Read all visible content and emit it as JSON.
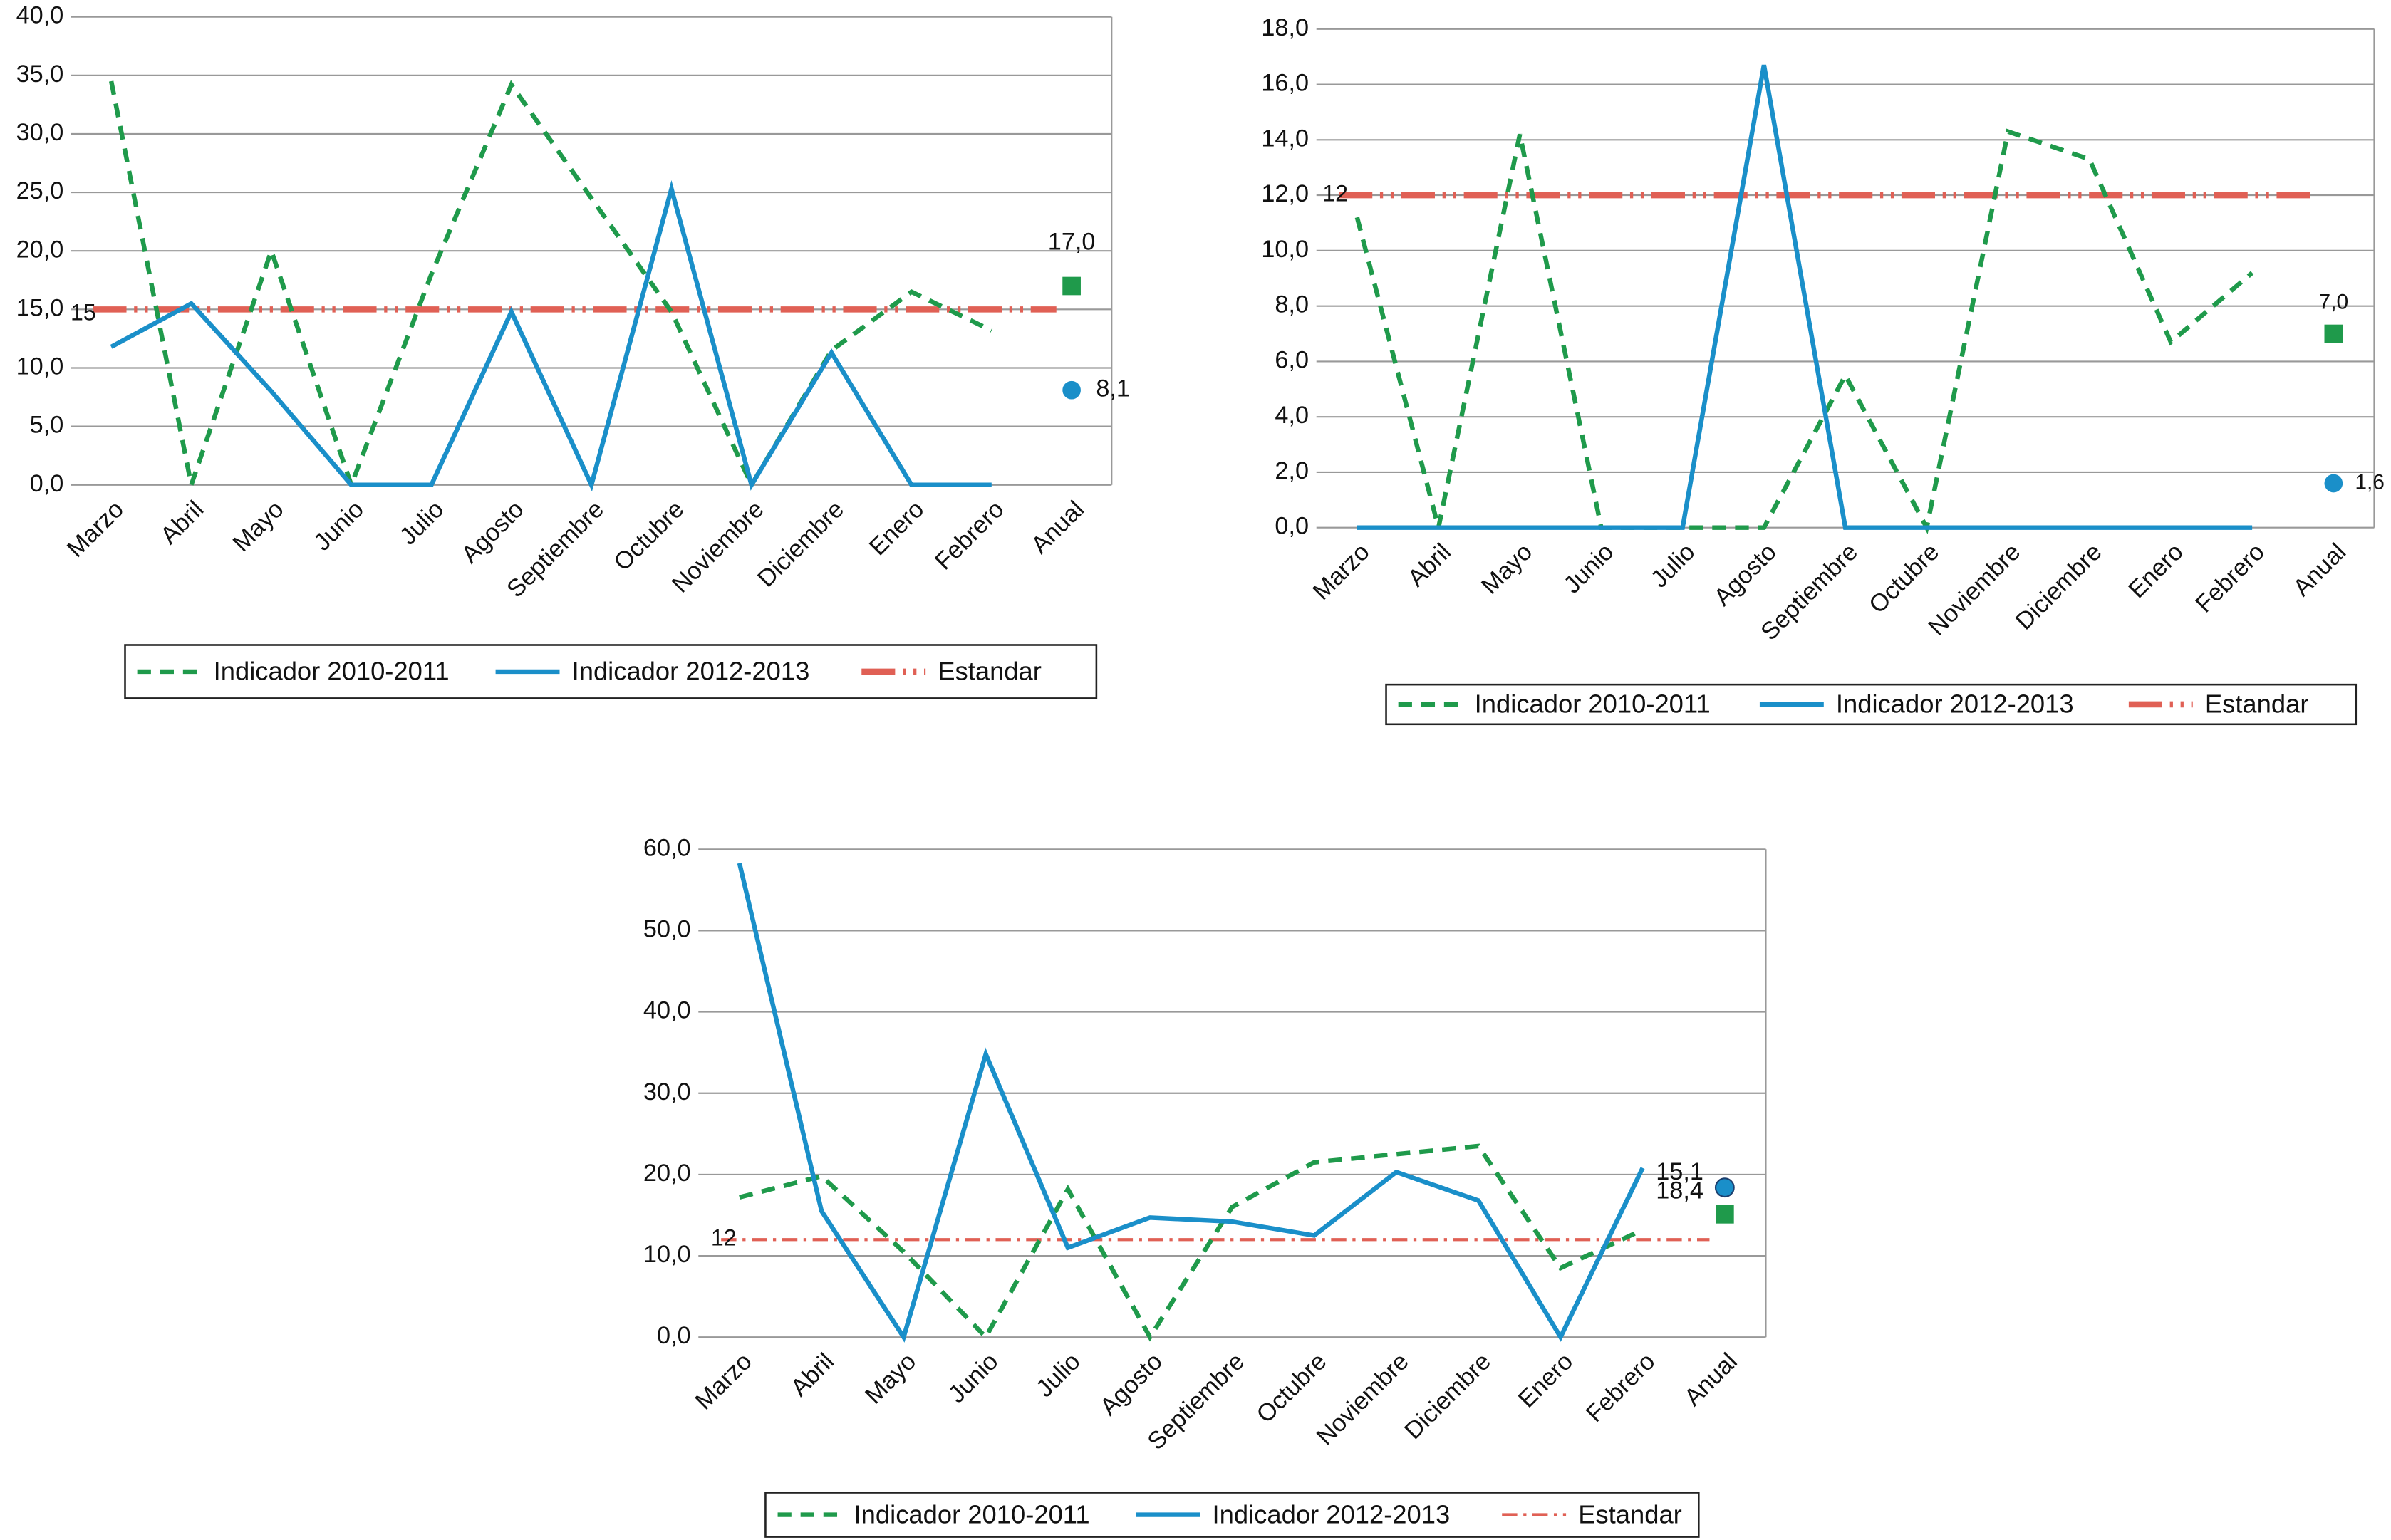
{
  "chart_data": [
    {
      "type": "line",
      "categories": [
        "Marzo",
        "Abril",
        "Mayo",
        "Junio",
        "Julio",
        "Agosto",
        "Septiembre",
        "Octubre",
        "Noviembre",
        "Diciembre",
        "Enero",
        "Febrero",
        "Anual"
      ],
      "series": [
        {
          "name": "Indicador 2010-2011",
          "color": "#1f9a4b",
          "dash": "dashed",
          "marker": "square",
          "values": [
            34.5,
            0,
            20,
            0,
            18,
            34.2,
            24.5,
            14.8,
            0,
            11.5,
            16.5,
            13.2,
            17.0
          ],
          "value_labels": [
            null,
            null,
            null,
            null,
            null,
            null,
            null,
            null,
            null,
            null,
            null,
            null,
            "17,0"
          ]
        },
        {
          "name": "Indicador 2012-2013",
          "color": "#1a8fc9",
          "dash": "solid",
          "marker": "circle",
          "values": [
            11.8,
            15.5,
            8,
            0,
            0,
            14.8,
            0,
            25.3,
            0,
            11.3,
            0,
            0,
            8.1
          ],
          "value_labels": [
            null,
            null,
            null,
            null,
            null,
            null,
            null,
            null,
            null,
            null,
            null,
            null,
            "8,1"
          ]
        }
      ],
      "standard": {
        "name": "Estandar",
        "color": "#e06055",
        "value": 15
      },
      "ylim": [
        0,
        40
      ],
      "yticks": [
        {
          "value": 0,
          "label": "0,0"
        },
        {
          "value": 5,
          "label": "5,0"
        },
        {
          "value": 10,
          "label": "10,0"
        },
        {
          "value": 15,
          "label": "15,0"
        },
        {
          "value": 20,
          "label": "20,0"
        },
        {
          "value": 25,
          "label": "25,0"
        },
        {
          "value": 30,
          "label": "30,0"
        },
        {
          "value": 35,
          "label": "35,0"
        },
        {
          "value": 40,
          "label": "40,0"
        }
      ],
      "grid": true
    },
    {
      "type": "line",
      "categories": [
        "Marzo",
        "Abril",
        "Mayo",
        "Junio",
        "Julio",
        "Agosto",
        "Septiembre",
        "Octubre",
        "Noviembre",
        "Diciembre",
        "Enero",
        "Febrero",
        "Anual"
      ],
      "series": [
        {
          "name": "Indicador 2010-2011",
          "color": "#1f9a4b",
          "dash": "dashed",
          "marker": "square",
          "values": [
            11.2,
            0,
            14.2,
            0,
            0,
            0,
            5.5,
            0,
            14.3,
            13.3,
            6.7,
            9.2,
            7.0
          ],
          "value_labels": [
            null,
            null,
            null,
            null,
            null,
            null,
            null,
            null,
            null,
            null,
            null,
            null,
            "7,0"
          ]
        },
        {
          "name": "Indicador 2012-2013",
          "color": "#1a8fc9",
          "dash": "solid",
          "marker": "circle",
          "values": [
            0,
            0,
            0,
            0,
            0,
            16.7,
            0,
            0,
            0,
            0,
            0,
            0,
            1.6
          ],
          "value_labels": [
            null,
            null,
            null,
            null,
            null,
            null,
            null,
            null,
            null,
            null,
            null,
            null,
            "1,6"
          ]
        }
      ],
      "standard": {
        "name": "Estandar",
        "color": "#e06055",
        "value": 12
      },
      "ylim": [
        0,
        18
      ],
      "yticks": [
        {
          "value": 0,
          "label": "0,0"
        },
        {
          "value": 2,
          "label": "2,0"
        },
        {
          "value": 4,
          "label": "4,0"
        },
        {
          "value": 6,
          "label": "6,0"
        },
        {
          "value": 8,
          "label": "8,0"
        },
        {
          "value": 10,
          "label": "10,0"
        },
        {
          "value": 12,
          "label": "12,0"
        },
        {
          "value": 14,
          "label": "14,0"
        },
        {
          "value": 16,
          "label": "16,0"
        },
        {
          "value": 18,
          "label": "18,0"
        }
      ],
      "grid": true
    },
    {
      "type": "line",
      "categories": [
        "Marzo",
        "Abril",
        "Mayo",
        "Junio",
        "Julio",
        "Agosto",
        "Septiembre",
        "Octubre",
        "Noviembre",
        "Diciembre",
        "Enero",
        "Febrero",
        "Anual"
      ],
      "series": [
        {
          "name": "Indicador 2010-2011",
          "color": "#1f9a4b",
          "dash": "dashed",
          "marker": "square",
          "values": [
            17.2,
            19.8,
            10.5,
            0,
            18.2,
            0,
            16,
            21.5,
            22.5,
            23.5,
            8.5,
            13.2,
            15.1
          ],
          "value_labels": [
            null,
            null,
            null,
            null,
            null,
            null,
            null,
            null,
            null,
            null,
            null,
            null,
            "15,1"
          ]
        },
        {
          "name": "Indicador 2012-2013",
          "color": "#1a8fc9",
          "dash": "solid",
          "marker": "circle",
          "values": [
            58.3,
            15.5,
            0,
            34.8,
            11,
            14.7,
            14.2,
            12.5,
            20.3,
            16.8,
            0,
            20.8,
            18.4
          ],
          "value_labels": [
            null,
            null,
            null,
            null,
            null,
            null,
            null,
            null,
            null,
            null,
            null,
            null,
            "18,4"
          ]
        }
      ],
      "standard": {
        "name": "Estandar",
        "color": "#e06055",
        "value": 12
      },
      "ylim": [
        0,
        60
      ],
      "yticks": [
        {
          "value": 0,
          "label": "0,0"
        },
        {
          "value": 10,
          "label": "10,0"
        },
        {
          "value": 20,
          "label": "20,0"
        },
        {
          "value": 30,
          "label": "30,0"
        },
        {
          "value": 40,
          "label": "40,0"
        },
        {
          "value": 50,
          "label": "50,0"
        },
        {
          "value": 60,
          "label": "60,0"
        }
      ],
      "grid": true
    }
  ]
}
